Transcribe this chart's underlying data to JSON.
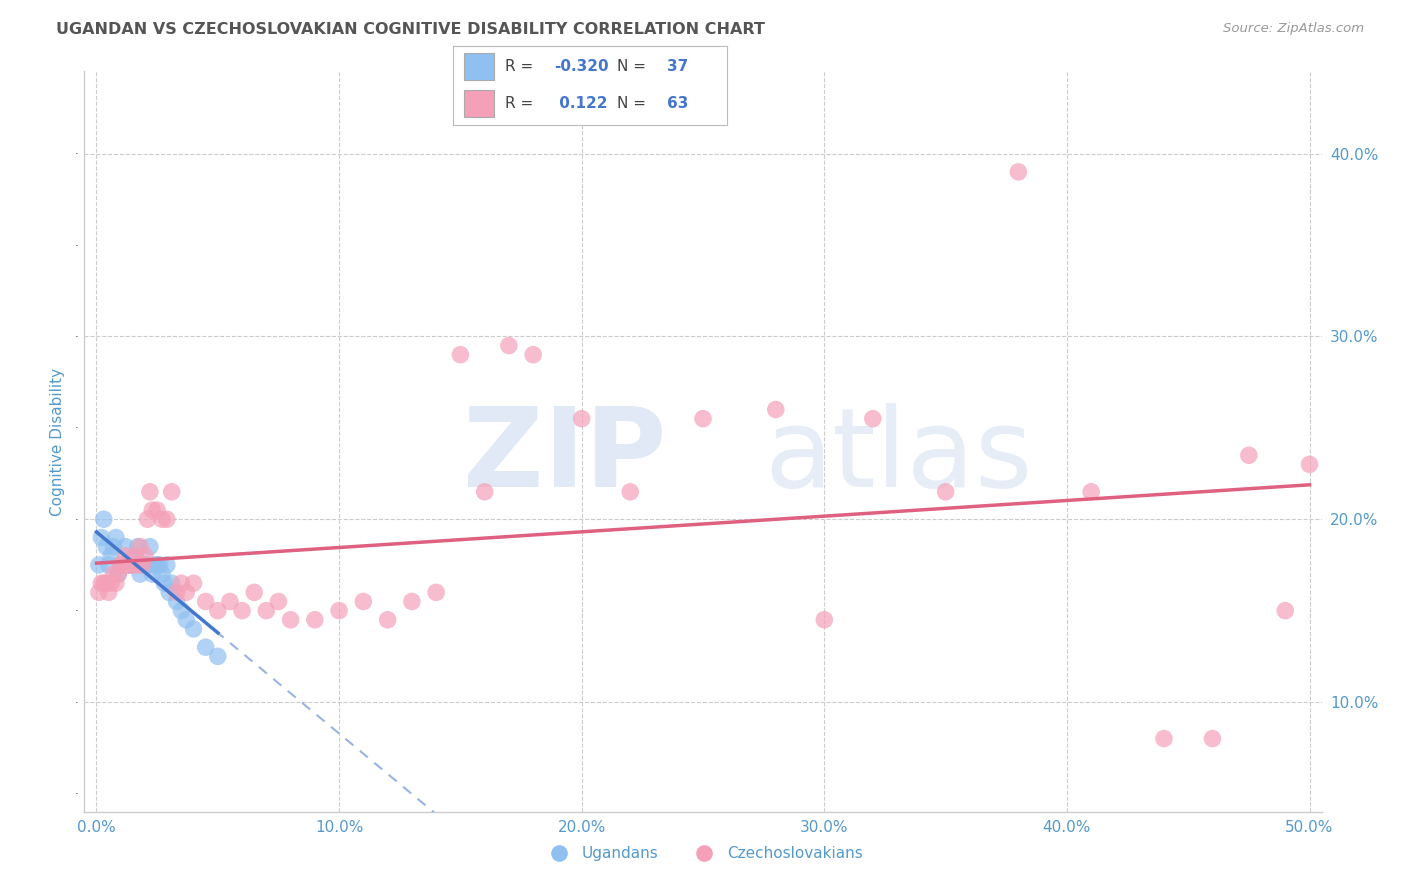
{
  "title": "UGANDAN VS CZECHOSLOVAKIAN COGNITIVE DISABILITY CORRELATION CHART",
  "source": "Source: ZipAtlas.com",
  "ylabel": "Cognitive Disability",
  "x_tick_vals": [
    0.0,
    0.1,
    0.2,
    0.3,
    0.4,
    0.5
  ],
  "y_tick_vals": [
    0.1,
    0.2,
    0.3,
    0.4
  ],
  "xlim": [
    -0.005,
    0.505
  ],
  "ylim": [
    0.04,
    0.445
  ],
  "r_ugandan": -0.32,
  "n_ugandan": 37,
  "r_czechoslovakian": 0.122,
  "n_czechoslovakian": 63,
  "ugandan_color": "#90c0f0",
  "czechoslovakian_color": "#f4a0b8",
  "ugandan_line_color": "#4477cc",
  "czechoslovakian_line_color": "#e06080",
  "ugandan_x": [
    0.001,
    0.002,
    0.003,
    0.004,
    0.005,
    0.006,
    0.007,
    0.008,
    0.009,
    0.01,
    0.011,
    0.012,
    0.013,
    0.014,
    0.015,
    0.016,
    0.017,
    0.018,
    0.019,
    0.02,
    0.021,
    0.022,
    0.023,
    0.024,
    0.025,
    0.026,
    0.027,
    0.028,
    0.029,
    0.03,
    0.031,
    0.033,
    0.035,
    0.037,
    0.04,
    0.045,
    0.05
  ],
  "ugandan_y": [
    0.175,
    0.19,
    0.2,
    0.185,
    0.175,
    0.18,
    0.185,
    0.19,
    0.17,
    0.175,
    0.175,
    0.185,
    0.175,
    0.175,
    0.175,
    0.18,
    0.185,
    0.17,
    0.175,
    0.175,
    0.175,
    0.185,
    0.17,
    0.175,
    0.175,
    0.175,
    0.17,
    0.165,
    0.175,
    0.16,
    0.165,
    0.155,
    0.15,
    0.145,
    0.14,
    0.13,
    0.125
  ],
  "czechoslovakian_x": [
    0.001,
    0.002,
    0.003,
    0.004,
    0.005,
    0.006,
    0.007,
    0.008,
    0.009,
    0.01,
    0.011,
    0.012,
    0.013,
    0.014,
    0.015,
    0.016,
    0.017,
    0.018,
    0.019,
    0.02,
    0.021,
    0.022,
    0.023,
    0.025,
    0.027,
    0.029,
    0.031,
    0.033,
    0.035,
    0.037,
    0.04,
    0.045,
    0.05,
    0.055,
    0.06,
    0.065,
    0.07,
    0.075,
    0.08,
    0.09,
    0.1,
    0.11,
    0.12,
    0.13,
    0.14,
    0.15,
    0.16,
    0.17,
    0.18,
    0.2,
    0.22,
    0.25,
    0.28,
    0.3,
    0.32,
    0.35,
    0.38,
    0.41,
    0.44,
    0.46,
    0.475,
    0.49,
    0.5
  ],
  "czechoslovakian_y": [
    0.16,
    0.165,
    0.165,
    0.165,
    0.16,
    0.165,
    0.17,
    0.165,
    0.17,
    0.175,
    0.175,
    0.18,
    0.175,
    0.175,
    0.175,
    0.18,
    0.175,
    0.185,
    0.175,
    0.18,
    0.2,
    0.215,
    0.205,
    0.205,
    0.2,
    0.2,
    0.215,
    0.16,
    0.165,
    0.16,
    0.165,
    0.155,
    0.15,
    0.155,
    0.15,
    0.16,
    0.15,
    0.155,
    0.145,
    0.145,
    0.15,
    0.155,
    0.145,
    0.155,
    0.16,
    0.29,
    0.215,
    0.295,
    0.29,
    0.255,
    0.215,
    0.255,
    0.26,
    0.145,
    0.255,
    0.215,
    0.39,
    0.215,
    0.08,
    0.08,
    0.235,
    0.15,
    0.23
  ],
  "background_color": "#ffffff",
  "grid_color": "#cccccc",
  "title_color": "#555555",
  "axis_label_color": "#5599cc",
  "tick_color": "#5599cc"
}
